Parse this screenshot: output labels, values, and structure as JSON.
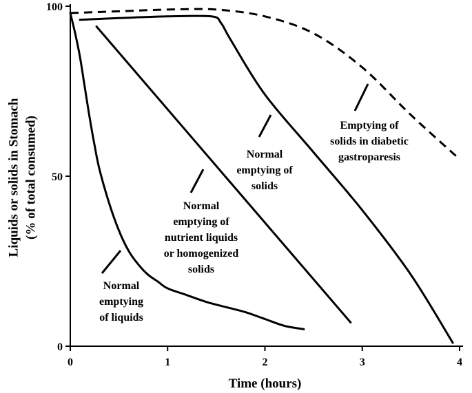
{
  "chart_data": {
    "type": "line",
    "xlabel": "Time (hours)",
    "ylabel_lines": [
      "Liquids or solids in Stomach",
      "(%  of total consumed)"
    ],
    "x_ticks": [
      "0",
      "1",
      "2",
      "3",
      "4"
    ],
    "y_ticks": [
      "0",
      "50",
      "100"
    ],
    "xlim": [
      0,
      4
    ],
    "ylim": [
      0,
      100
    ],
    "grid": false,
    "legend": "none",
    "series": [
      {
        "label_lines": [
          "Normal",
          "emptying",
          "of liquids"
        ],
        "style": "solid",
        "x": [
          0,
          0.05,
          0.1,
          0.15,
          0.2,
          0.25,
          0.3,
          0.4,
          0.5,
          0.6,
          0.7,
          0.8,
          0.9,
          1.0,
          1.2,
          1.4,
          1.6,
          1.8,
          2.0,
          2.2,
          2.4
        ],
        "y": [
          98,
          92,
          85,
          76,
          67,
          59,
          52,
          42,
          34,
          28,
          24,
          21,
          19,
          17,
          15,
          13,
          11.5,
          10,
          8,
          6,
          5
        ]
      },
      {
        "label_lines": [
          "Normal",
          "emptying of",
          "nutrient liquids",
          "or homogenized",
          "solids"
        ],
        "style": "solid",
        "x": [
          0.27,
          2.88
        ],
        "y": [
          94,
          7
        ]
      },
      {
        "label_lines": [
          "Normal",
          "emptying of",
          "solids"
        ],
        "style": "solid",
        "x": [
          0.1,
          0.5,
          1.0,
          1.45,
          1.55,
          1.65,
          2.0,
          2.5,
          3.0,
          3.5,
          3.93
        ],
        "y": [
          96,
          96.5,
          97,
          97,
          95,
          90,
          74,
          57,
          40,
          21,
          1
        ]
      },
      {
        "label_lines": [
          "Emptying of",
          "solids in diabetic",
          "gastroparesis"
        ],
        "style": "dashed",
        "x": [
          0,
          0.5,
          1.0,
          1.5,
          2.0,
          2.5,
          3.0,
          3.5,
          4.0
        ],
        "y": [
          98,
          98.5,
          99,
          99,
          97,
          92,
          82,
          68,
          55
        ]
      }
    ]
  }
}
